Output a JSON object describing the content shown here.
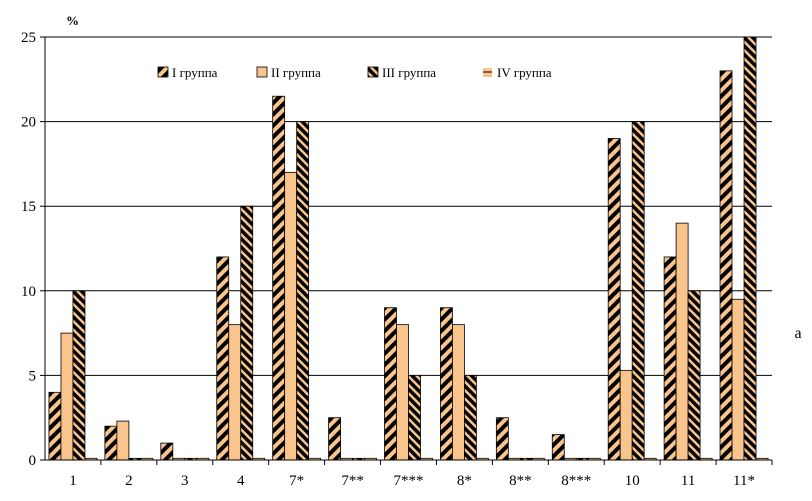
{
  "colors": {
    "stripe_dark": "#000000",
    "fill_light": "#F9C58D",
    "grid": "#000000",
    "background": "#ffffff"
  },
  "chart_data": {
    "type": "bar",
    "unit_label": "%",
    "side_label": "a",
    "categories": [
      "1",
      "2",
      "3",
      "4",
      "7*",
      "7**",
      "7***",
      "8*",
      "8**",
      "8***",
      "10",
      "11",
      "11*"
    ],
    "ylim": [
      0,
      25
    ],
    "yticks": [
      0,
      5,
      10,
      15,
      20,
      25
    ],
    "grid": true,
    "legend_position": "top",
    "series": [
      {
        "name": "I группа",
        "pattern": "diagonal-stripes",
        "values": [
          4,
          2,
          1,
          12,
          21.5,
          2.5,
          9,
          9,
          2.5,
          1.5,
          19,
          12,
          23
        ]
      },
      {
        "name": "II группа",
        "pattern": "solid",
        "values": [
          7.5,
          2.3,
          0.1,
          8,
          17,
          0.1,
          8,
          8,
          0.1,
          0.1,
          5.3,
          14,
          9.5
        ]
      },
      {
        "name": "III группа",
        "pattern": "dense-stripes",
        "values": [
          10,
          0.1,
          0.1,
          15,
          20,
          0.1,
          5,
          5,
          0.1,
          0.1,
          20,
          10,
          25
        ]
      },
      {
        "name": "IV группа",
        "pattern": "horizontal-line",
        "values": [
          0.1,
          0.1,
          0.1,
          0.1,
          0.1,
          0.1,
          0.1,
          0.1,
          0.1,
          0.1,
          0.1,
          0.1,
          0.1
        ]
      }
    ]
  }
}
